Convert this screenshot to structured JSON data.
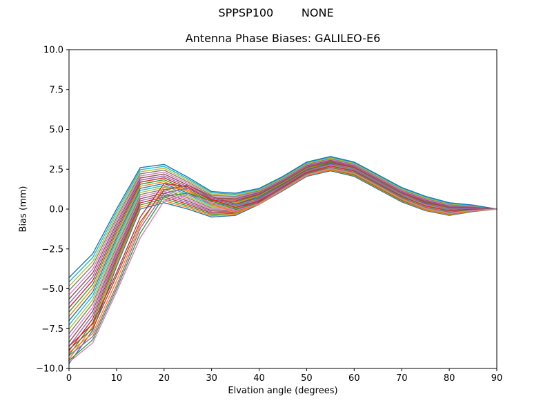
{
  "chart_data": {
    "type": "line",
    "suptitle": "SPPSP100        NONE",
    "title": "Antenna Phase Biases: GALILEO-E6",
    "xlabel": "Elvation angle (degrees)",
    "ylabel": "Bias (mm)",
    "xlim": [
      0,
      90
    ],
    "ylim": [
      -10,
      10
    ],
    "grid": false,
    "legend": "none",
    "xticks": [
      0,
      10,
      20,
      30,
      40,
      50,
      60,
      70,
      80,
      90
    ],
    "xtick_labels": [
      "0",
      "10",
      "20",
      "30",
      "40",
      "50",
      "60",
      "70",
      "80",
      "90"
    ],
    "yticks": [
      -10,
      -7.5,
      -5,
      -2.5,
      0,
      2.5,
      5,
      7.5,
      10
    ],
    "ytick_labels": [
      "−10.0",
      "−7.5",
      "−5.0",
      "−2.5",
      "0.0",
      "2.5",
      "5.0",
      "7.5",
      "10.0"
    ],
    "palette": [
      "#1f77b4",
      "#ff7f0e",
      "#2ca02c",
      "#d62728",
      "#9467bd",
      "#8c564b",
      "#e377c2",
      "#7f7f7f",
      "#bcbd22",
      "#17becf"
    ],
    "x": [
      0,
      5,
      10,
      15,
      20,
      25,
      30,
      35,
      40,
      45,
      50,
      55,
      60,
      65,
      70,
      75,
      80,
      85,
      90
    ],
    "series": [
      {
        "name": "s1",
        "values": [
          -9.7,
          -7.6,
          -3.6,
          0.0,
          0.4,
          0.0,
          -0.5,
          -0.4,
          0.3,
          1.15,
          2.05,
          2.4,
          2.05,
          1.25,
          0.45,
          -0.1,
          -0.4,
          -0.15,
          0.0
        ]
      },
      {
        "name": "s2",
        "values": [
          -9.43,
          -7.36,
          -3.42,
          0.13,
          0.52,
          0.1,
          -0.42,
          -0.33,
          0.35,
          1.2,
          2.1,
          2.45,
          2.1,
          1.3,
          0.5,
          -0.06,
          -0.36,
          -0.13,
          0.0
        ]
      },
      {
        "name": "s3",
        "values": [
          -9.16,
          -7.12,
          -3.24,
          0.26,
          0.64,
          0.2,
          -0.34,
          -0.26,
          0.4,
          1.24,
          2.14,
          2.49,
          2.14,
          1.34,
          0.54,
          -0.01,
          -0.32,
          -0.11,
          0.0
        ]
      },
      {
        "name": "s4",
        "values": [
          -8.89,
          -6.88,
          -3.06,
          0.39,
          0.76,
          0.3,
          -0.26,
          -0.19,
          0.45,
          1.29,
          2.19,
          2.54,
          2.19,
          1.39,
          0.59,
          0.04,
          -0.28,
          -0.09,
          0.0
        ]
      },
      {
        "name": "s5",
        "values": [
          -8.62,
          -6.64,
          -2.88,
          0.52,
          0.88,
          0.4,
          -0.18,
          -0.12,
          0.5,
          1.33,
          2.23,
          2.58,
          2.23,
          1.43,
          0.63,
          0.08,
          -0.24,
          -0.07,
          0.0
        ]
      },
      {
        "name": "s6",
        "values": [
          -8.35,
          -6.4,
          -2.7,
          0.65,
          1.0,
          0.5,
          -0.1,
          -0.05,
          0.55,
          1.38,
          2.28,
          2.63,
          2.28,
          1.48,
          0.68,
          0.13,
          -0.2,
          -0.05,
          0.0
        ]
      },
      {
        "name": "s7",
        "values": [
          -8.08,
          -6.16,
          -2.52,
          0.78,
          1.12,
          0.6,
          -0.02,
          0.02,
          0.6,
          1.42,
          2.32,
          2.67,
          2.32,
          1.52,
          0.72,
          0.17,
          -0.16,
          -0.03,
          0.0
        ]
      },
      {
        "name": "s8",
        "values": [
          -7.81,
          -5.92,
          -2.34,
          0.91,
          1.24,
          0.7,
          0.06,
          0.09,
          0.65,
          1.47,
          2.37,
          2.72,
          2.37,
          1.57,
          0.77,
          0.22,
          -0.12,
          -0.01,
          0.0
        ]
      },
      {
        "name": "s9",
        "values": [
          -7.54,
          -5.68,
          -2.16,
          1.04,
          1.36,
          0.8,
          0.14,
          0.16,
          0.7,
          1.51,
          2.41,
          2.76,
          2.41,
          1.61,
          0.81,
          0.26,
          -0.08,
          0.01,
          0.0
        ]
      },
      {
        "name": "s10",
        "values": [
          -7.27,
          -5.44,
          -1.98,
          1.17,
          1.48,
          0.9,
          0.22,
          0.23,
          0.75,
          1.56,
          2.46,
          2.81,
          2.46,
          1.66,
          0.86,
          0.31,
          -0.04,
          0.03,
          0.0
        ]
      },
      {
        "name": "s11",
        "values": [
          -7.0,
          -5.2,
          -1.8,
          1.3,
          1.6,
          1.0,
          0.3,
          0.3,
          0.8,
          1.6,
          2.5,
          2.85,
          2.5,
          1.7,
          0.9,
          0.35,
          0.0,
          0.05,
          0.0
        ]
      },
      {
        "name": "s12",
        "values": [
          -6.73,
          -4.96,
          -1.62,
          1.43,
          1.72,
          1.1,
          0.38,
          0.37,
          0.85,
          1.65,
          2.55,
          2.9,
          2.55,
          1.75,
          0.95,
          0.4,
          0.04,
          0.07,
          0.0
        ]
      },
      {
        "name": "s13",
        "values": [
          -6.46,
          -4.72,
          -1.44,
          1.56,
          1.84,
          1.2,
          0.46,
          0.44,
          0.9,
          1.69,
          2.59,
          2.94,
          2.59,
          1.79,
          0.99,
          0.44,
          0.08,
          0.09,
          0.0
        ]
      },
      {
        "name": "s14",
        "values": [
          -6.19,
          -4.48,
          -1.26,
          1.69,
          1.96,
          1.3,
          0.54,
          0.51,
          0.95,
          1.74,
          2.64,
          2.99,
          2.64,
          1.84,
          1.04,
          0.49,
          0.12,
          0.11,
          0.0
        ]
      },
      {
        "name": "s15",
        "values": [
          -5.92,
          -4.24,
          -1.08,
          1.82,
          2.08,
          1.4,
          0.62,
          0.58,
          1.0,
          1.78,
          2.68,
          3.03,
          2.68,
          1.88,
          1.08,
          0.53,
          0.16,
          0.13,
          0.0
        ]
      },
      {
        "name": "s16",
        "values": [
          -5.65,
          -4.0,
          -0.9,
          1.95,
          2.2,
          1.5,
          0.7,
          0.65,
          1.05,
          1.83,
          2.73,
          3.08,
          2.73,
          1.93,
          1.13,
          0.58,
          0.2,
          0.15,
          0.0
        ]
      },
      {
        "name": "s17",
        "values": [
          -5.38,
          -3.76,
          -0.72,
          2.08,
          2.32,
          1.6,
          0.78,
          0.72,
          1.1,
          1.87,
          2.77,
          3.12,
          2.77,
          1.97,
          1.17,
          0.62,
          0.24,
          0.17,
          0.0
        ]
      },
      {
        "name": "s18",
        "values": [
          -5.11,
          -3.52,
          -0.54,
          2.21,
          2.44,
          1.7,
          0.86,
          0.79,
          1.15,
          1.92,
          2.82,
          3.17,
          2.82,
          2.02,
          1.22,
          0.67,
          0.28,
          0.19,
          0.0
        ]
      },
      {
        "name": "s19",
        "values": [
          -4.84,
          -3.28,
          -0.36,
          2.34,
          2.56,
          1.8,
          0.94,
          0.86,
          1.2,
          1.96,
          2.86,
          3.21,
          2.86,
          2.06,
          1.26,
          0.71,
          0.32,
          0.21,
          0.0
        ]
      },
      {
        "name": "s20",
        "values": [
          -4.57,
          -3.04,
          -0.18,
          2.47,
          2.68,
          1.9,
          1.02,
          0.93,
          1.25,
          2.01,
          2.91,
          3.26,
          2.91,
          2.11,
          1.31,
          0.76,
          0.36,
          0.23,
          0.0
        ]
      },
      {
        "name": "s21",
        "values": [
          -4.3,
          -2.8,
          0.0,
          2.6,
          2.8,
          2.0,
          1.1,
          1.0,
          1.3,
          2.05,
          2.95,
          3.3,
          2.95,
          2.15,
          1.35,
          0.8,
          0.4,
          0.25,
          0.0
        ]
      },
      {
        "name": "s22",
        "values": [
          -9.0,
          -7.8,
          -4.5,
          -1.0,
          1.4,
          1.2,
          0.3,
          -0.2,
          0.3,
          1.2,
          2.1,
          2.5,
          2.2,
          1.4,
          0.6,
          0.0,
          -0.3,
          -0.1,
          0.0
        ]
      },
      {
        "name": "s23",
        "values": [
          -9.5,
          -8.2,
          -5.0,
          -1.5,
          0.8,
          1.0,
          0.5,
          0.0,
          0.4,
          1.3,
          2.2,
          2.6,
          2.3,
          1.5,
          0.7,
          0.1,
          -0.2,
          -0.05,
          0.0
        ]
      },
      {
        "name": "s24",
        "values": [
          -8.6,
          -7.2,
          -4.0,
          -0.5,
          1.6,
          1.4,
          0.6,
          0.1,
          0.5,
          1.4,
          2.3,
          2.7,
          2.4,
          1.6,
          0.8,
          0.2,
          -0.1,
          0.0,
          0.0
        ]
      },
      {
        "name": "s25",
        "values": [
          -9.2,
          -8.0,
          -4.8,
          -1.2,
          1.0,
          1.3,
          0.7,
          0.2,
          0.6,
          1.5,
          2.4,
          2.8,
          2.5,
          1.7,
          0.9,
          0.3,
          0.0,
          0.05,
          0.0
        ]
      },
      {
        "name": "s26",
        "values": [
          -8.8,
          -7.5,
          -4.2,
          -0.8,
          1.2,
          1.5,
          0.8,
          0.3,
          0.7,
          1.55,
          2.45,
          2.9,
          2.6,
          1.8,
          1.0,
          0.4,
          0.1,
          0.1,
          0.0
        ]
      },
      {
        "name": "s27",
        "values": [
          -9.6,
          -8.4,
          -5.2,
          -1.8,
          0.5,
          0.9,
          0.4,
          -0.1,
          0.35,
          1.25,
          2.15,
          2.55,
          2.25,
          1.45,
          0.65,
          0.05,
          -0.25,
          -0.08,
          0.0
        ]
      }
    ]
  }
}
